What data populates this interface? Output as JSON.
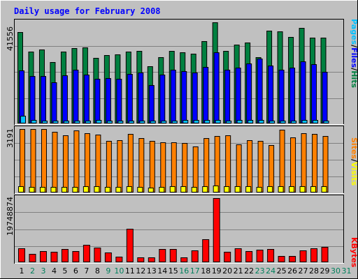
{
  "title": "Daily usage for February 2008",
  "colors": {
    "background": "#c0c0c0",
    "title": "#0000ff",
    "hits": "#008040",
    "files": "#0000ff",
    "pages": "#00c0ff",
    "visits": "#ffff00",
    "sites": "#ff8000",
    "kbytes": "#ff0000",
    "weekday_label": "#000000",
    "weekend_label": "#00805c"
  },
  "chart_data": [
    {
      "type": "bar",
      "panel": "hits-files-pages",
      "ymax_label": "41556",
      "ylim": [
        0,
        41556
      ],
      "legend": [
        {
          "name": "Pages",
          "color": "#00c0ff"
        },
        {
          "name": "/",
          "color": "#000000"
        },
        {
          "name": "Files",
          "color": "#0000ff"
        },
        {
          "name": "/",
          "color": "#000000"
        },
        {
          "name": "Hits",
          "color": "#008040"
        }
      ],
      "categories": [
        "1",
        "2",
        "3",
        "4",
        "5",
        "6",
        "7",
        "8",
        "9",
        "10",
        "11",
        "12",
        "13",
        "14",
        "15",
        "16",
        "17",
        "18",
        "19",
        "20",
        "21",
        "22",
        "23",
        "24",
        "25",
        "26",
        "27",
        "28",
        "29",
        "30",
        "31"
      ],
      "series": [
        {
          "name": "Hits",
          "values": [
            37400,
            29500,
            30400,
            25000,
            29300,
            31000,
            31300,
            26800,
            28000,
            28300,
            29500,
            29700,
            23300,
            27200,
            29800,
            29200,
            28600,
            33800,
            41556,
            29800,
            32300,
            33100,
            27000,
            38200,
            37900,
            35500,
            39300,
            35200,
            35300,
            0,
            0
          ]
        },
        {
          "name": "Files",
          "values": [
            21700,
            19400,
            19300,
            16800,
            19600,
            21800,
            20000,
            18300,
            18400,
            18300,
            20100,
            20900,
            15600,
            19800,
            21900,
            21300,
            20800,
            23200,
            29100,
            21900,
            22800,
            24500,
            26500,
            23600,
            22000,
            22900,
            25400,
            24100,
            21100,
            0,
            0
          ]
        },
        {
          "name": "Pages",
          "values": [
            2900,
            1100,
            1000,
            1000,
            1000,
            1000,
            900,
            1100,
            1000,
            1000,
            1000,
            1000,
            1000,
            1000,
            1000,
            1100,
            1100,
            1200,
            1100,
            1000,
            1100,
            1100,
            1100,
            1000,
            1000,
            1000,
            1100,
            1100,
            1000,
            0,
            0
          ]
        }
      ]
    },
    {
      "type": "bar",
      "panel": "visits-sites",
      "ymax_label": "3191",
      "ylim": [
        0,
        3191
      ],
      "legend": [
        {
          "name": "Sites",
          "color": "#ff8000"
        },
        {
          "name": "/",
          "color": "#000000"
        },
        {
          "name": "Visits",
          "color": "#ffff00"
        }
      ],
      "categories": [
        "1",
        "2",
        "3",
        "4",
        "5",
        "6",
        "7",
        "8",
        "9",
        "10",
        "11",
        "12",
        "13",
        "14",
        "15",
        "16",
        "17",
        "18",
        "19",
        "20",
        "21",
        "22",
        "23",
        "24",
        "25",
        "26",
        "27",
        "28",
        "29",
        "30",
        "31"
      ],
      "series": [
        {
          "name": "Visits",
          "values": [
            3191,
            3191,
            3191,
            3060,
            2880,
            3130,
            2980,
            2900,
            2600,
            2610,
            2930,
            2730,
            2600,
            2520,
            2530,
            2470,
            2310,
            2740,
            2840,
            2860,
            2400,
            2620,
            2590,
            2380,
            3170,
            2760,
            2980,
            2950,
            2850,
            0,
            0
          ]
        },
        {
          "name": "Sites",
          "values": [
            300,
            250,
            250,
            240,
            250,
            250,
            270,
            300,
            250,
            250,
            270,
            260,
            230,
            260,
            270,
            270,
            260,
            280,
            310,
            270,
            270,
            270,
            250,
            280,
            280,
            280,
            270,
            280,
            300,
            0,
            0
          ]
        }
      ]
    },
    {
      "type": "bar",
      "panel": "kbytes",
      "ymax_label": "19748874",
      "ylim": [
        0,
        19748874
      ],
      "legend": [
        {
          "name": "KBytes",
          "color": "#ff0000"
        }
      ],
      "categories": [
        "1",
        "2",
        "3",
        "4",
        "5",
        "6",
        "7",
        "8",
        "9",
        "10",
        "11",
        "12",
        "13",
        "14",
        "15",
        "16",
        "17",
        "18",
        "19",
        "20",
        "21",
        "22",
        "23",
        "24",
        "25",
        "26",
        "27",
        "28",
        "29",
        "30",
        "31"
      ],
      "series": [
        {
          "name": "KBytes",
          "values": [
            4200000,
            2400000,
            3200000,
            3000000,
            3900000,
            3200000,
            5300000,
            4400000,
            2900000,
            1500000,
            10300000,
            1300000,
            1400000,
            3900000,
            4000000,
            1300000,
            3500000,
            6900000,
            19748874,
            3100000,
            4100000,
            3200000,
            3600000,
            4000000,
            1800000,
            1800000,
            3400000,
            4200000,
            4600000,
            0,
            0
          ]
        }
      ]
    }
  ],
  "x_labels": [
    {
      "text": "1",
      "weekend": false
    },
    {
      "text": "2",
      "weekend": true
    },
    {
      "text": "3",
      "weekend": true
    },
    {
      "text": "4",
      "weekend": false
    },
    {
      "text": "5",
      "weekend": false
    },
    {
      "text": "6",
      "weekend": false
    },
    {
      "text": "7",
      "weekend": false
    },
    {
      "text": "8",
      "weekend": false
    },
    {
      "text": "9",
      "weekend": true
    },
    {
      "text": "10",
      "weekend": true
    },
    {
      "text": "11",
      "weekend": false
    },
    {
      "text": "12",
      "weekend": false
    },
    {
      "text": "13",
      "weekend": false
    },
    {
      "text": "14",
      "weekend": false
    },
    {
      "text": "15",
      "weekend": false
    },
    {
      "text": "16",
      "weekend": true
    },
    {
      "text": "17",
      "weekend": true
    },
    {
      "text": "18",
      "weekend": false
    },
    {
      "text": "19",
      "weekend": false
    },
    {
      "text": "20",
      "weekend": false
    },
    {
      "text": "21",
      "weekend": false
    },
    {
      "text": "22",
      "weekend": false
    },
    {
      "text": "23",
      "weekend": true
    },
    {
      "text": "24",
      "weekend": true
    },
    {
      "text": "25",
      "weekend": false
    },
    {
      "text": "26",
      "weekend": false
    },
    {
      "text": "27",
      "weekend": false
    },
    {
      "text": "28",
      "weekend": false
    },
    {
      "text": "29",
      "weekend": false
    },
    {
      "text": "30",
      "weekend": true
    },
    {
      "text": "31",
      "weekend": true
    }
  ]
}
